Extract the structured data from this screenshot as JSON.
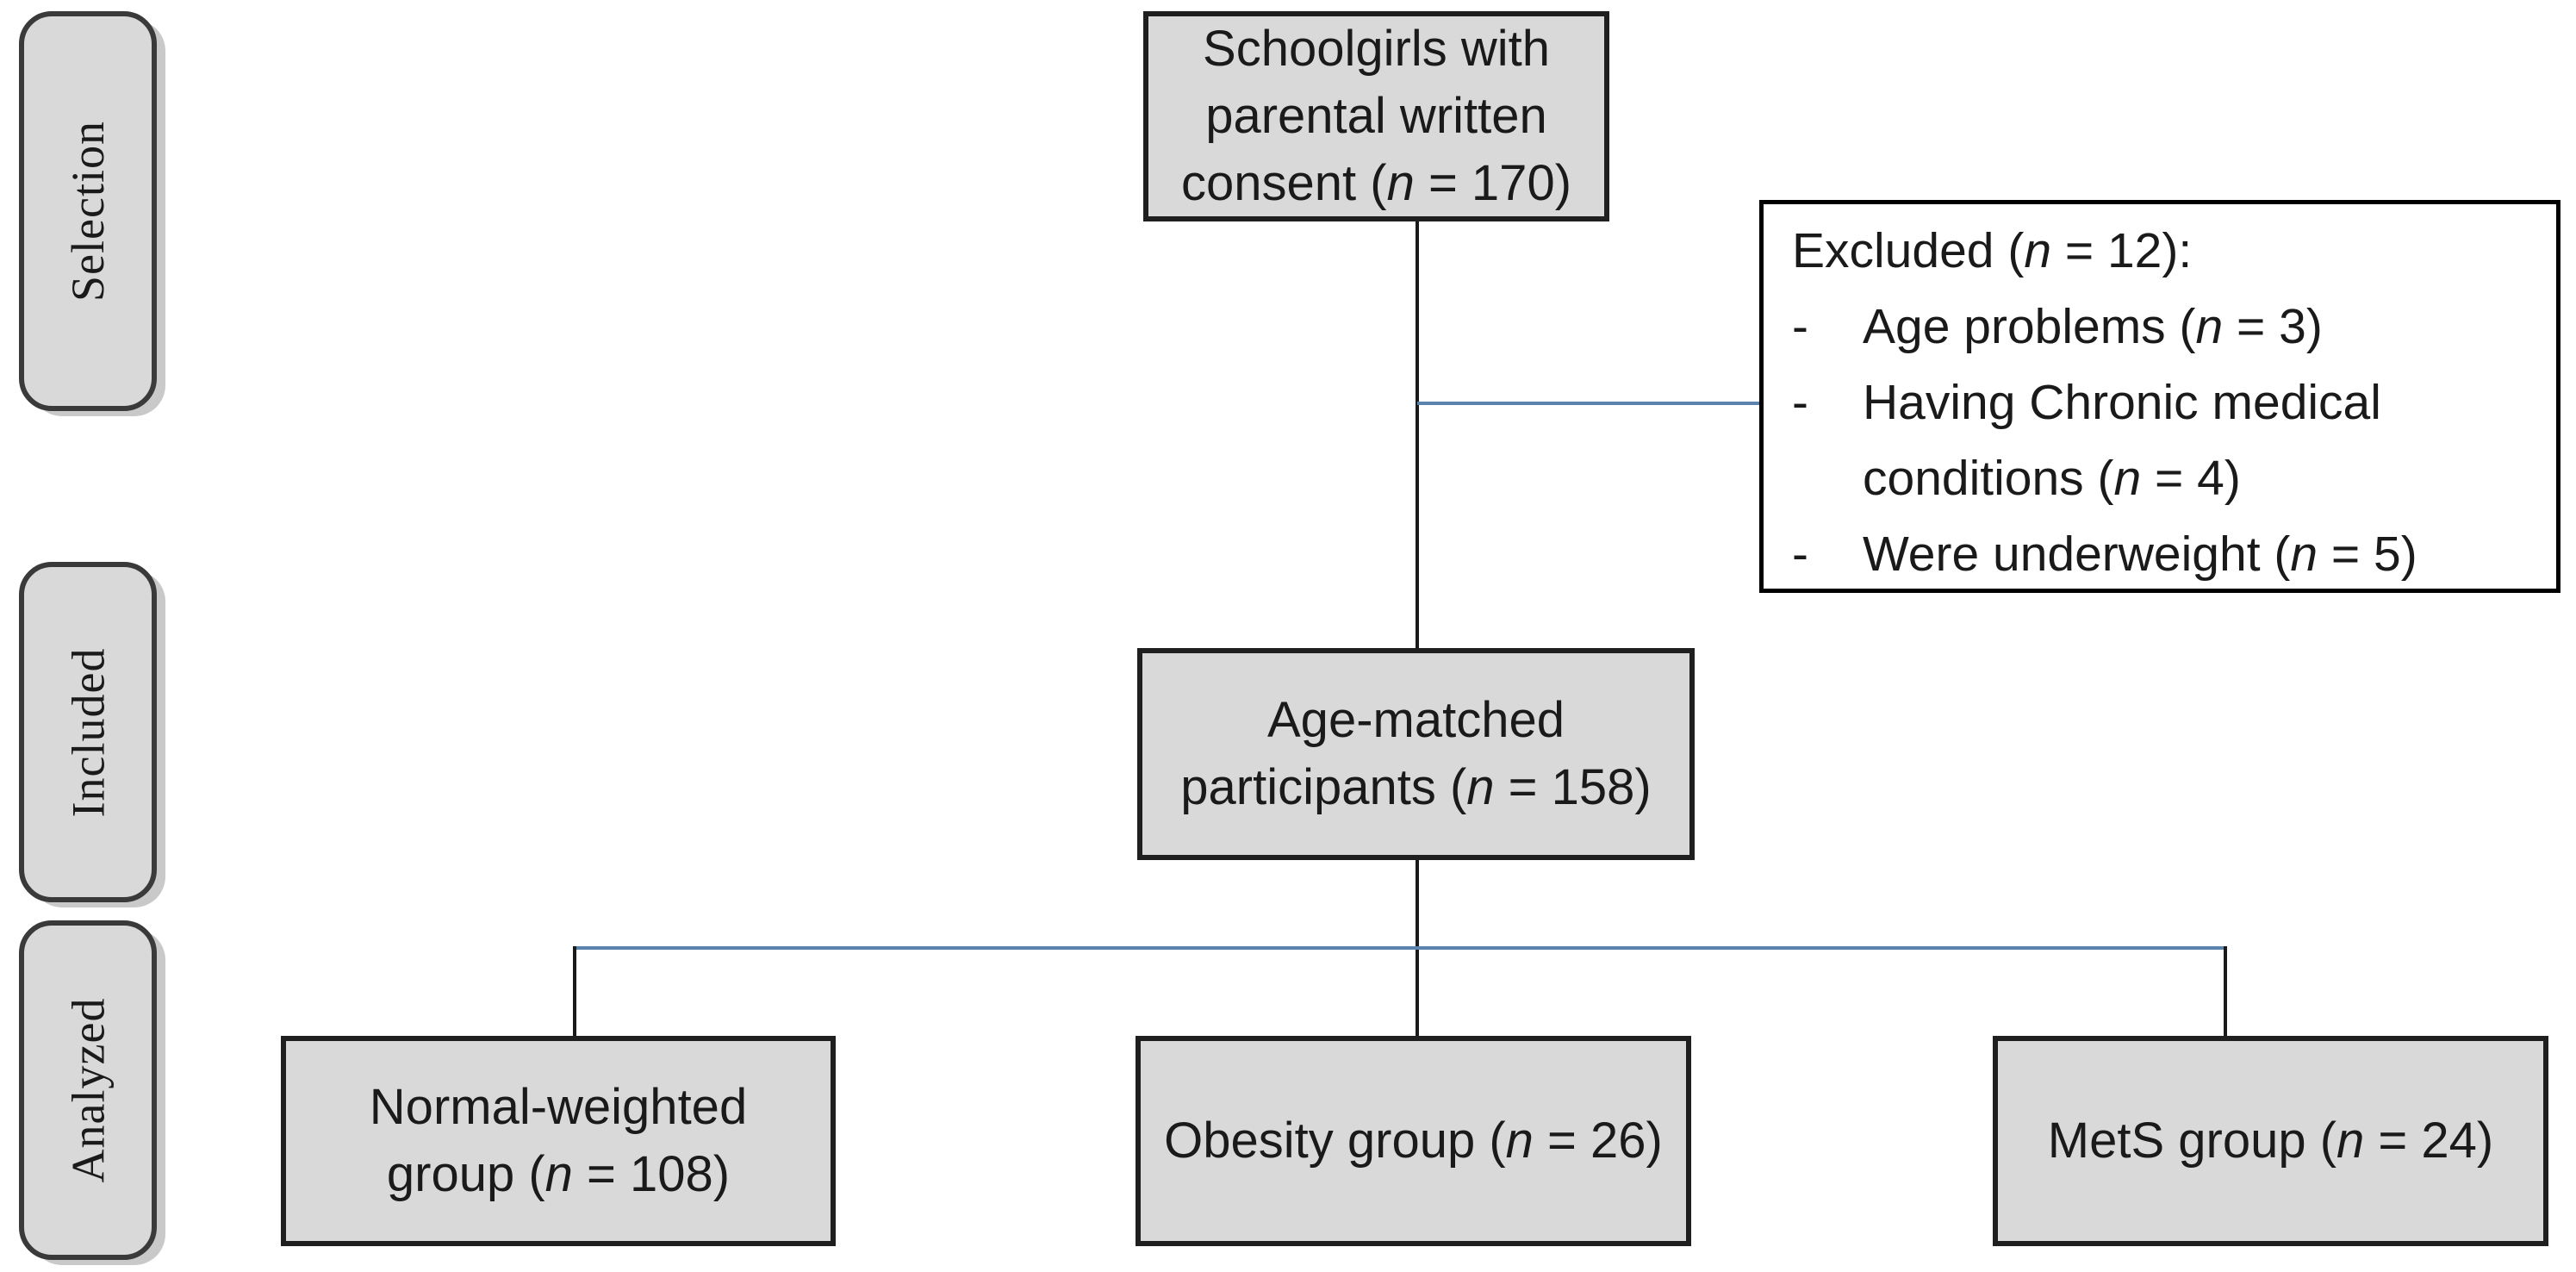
{
  "stages": [
    {
      "id": "selection",
      "label": "Selection"
    },
    {
      "id": "included",
      "label": "Included"
    },
    {
      "id": "analyzed",
      "label": "Analyzed"
    }
  ],
  "nodes": {
    "enrolled": {
      "text": "Schoolgirls with\nparental written\nconsent (n = 170)"
    },
    "excluded": {
      "title": "Excluded (n = 12):",
      "bullet": "-",
      "items": [
        "Age problems (n = 3)",
        "Having Chronic medical conditions (n = 4)",
        "Were underweight (n = 5)"
      ]
    },
    "age_matched": {
      "text": "Age-matched\nparticipants (n = 158)"
    },
    "groups": [
      {
        "id": "normal",
        "text": "Normal-weighted\ngroup (n = 108)"
      },
      {
        "id": "obesity",
        "text": "Obesity group (n = 26)"
      },
      {
        "id": "mets",
        "text": "MetS group (n = 24)"
      }
    ]
  },
  "colors": {
    "node_fill": "#d9d9d9",
    "node_border": "#1f1f1f",
    "excluded_fill": "#ffffff",
    "excluded_border": "#000000",
    "connector_black": "#1a1a1a",
    "connector_blue": "#5b83ad",
    "stage_fill": "#d9d9d9",
    "stage_border": "#3a3a3a",
    "stage_shadow": "#c9c9c9",
    "text_color": "#1a1a1a"
  }
}
